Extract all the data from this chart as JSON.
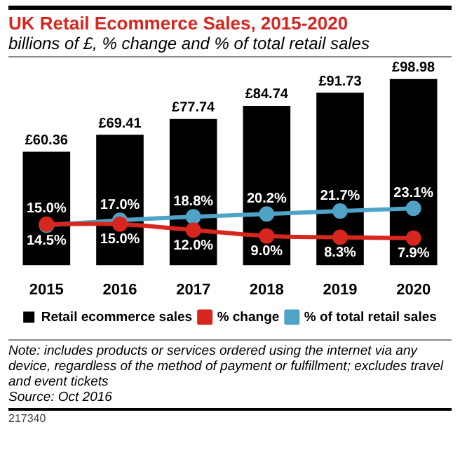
{
  "chart_data": {
    "type": "bar",
    "title": "UK Retail Ecommerce Sales, 2015-2020",
    "subtitle": "billions of £, % change and % of total retail sales",
    "categories": [
      "2015",
      "2016",
      "2017",
      "2018",
      "2019",
      "2020"
    ],
    "series": [
      {
        "name": "Retail ecommerce sales",
        "color": "#000000",
        "values": [
          60.36,
          69.41,
          77.74,
          84.74,
          91.73,
          98.98
        ],
        "value_labels": [
          "£60.36",
          "£69.41",
          "£77.74",
          "£84.74",
          "£91.73",
          "£98.98"
        ]
      },
      {
        "name": "% change",
        "type": "line",
        "axis": "y2",
        "color": "#d7261e",
        "values": [
          15.0,
          15.0,
          12.0,
          9.0,
          8.3,
          7.9
        ],
        "value_labels": [
          "15.0%",
          "15.0%",
          "12.0%",
          "9.0%",
          "8.3%",
          "7.9%"
        ]
      },
      {
        "name": "% of total retail sales",
        "type": "line",
        "axis": "y2",
        "color": "#4fa3c7",
        "values": [
          14.5,
          17.0,
          18.8,
          20.2,
          21.7,
          23.1
        ],
        "value_labels": [
          "14.5%",
          "17.0%",
          "18.8%",
          "20.2%",
          "21.7%",
          "23.1%"
        ]
      }
    ],
    "ylim": [
      0,
      100
    ],
    "y2lim": [
      -6,
      90
    ],
    "grid": false,
    "legend": "bottom",
    "marker": "circle",
    "tick_labels": "x",
    "annotations": [
      "Note: includes products or services ordered using the internet via any device, regardless of the method of payment or fulfillment; excludes travel and event tickets",
      "Source: Oct 2016",
      "217340"
    ]
  }
}
